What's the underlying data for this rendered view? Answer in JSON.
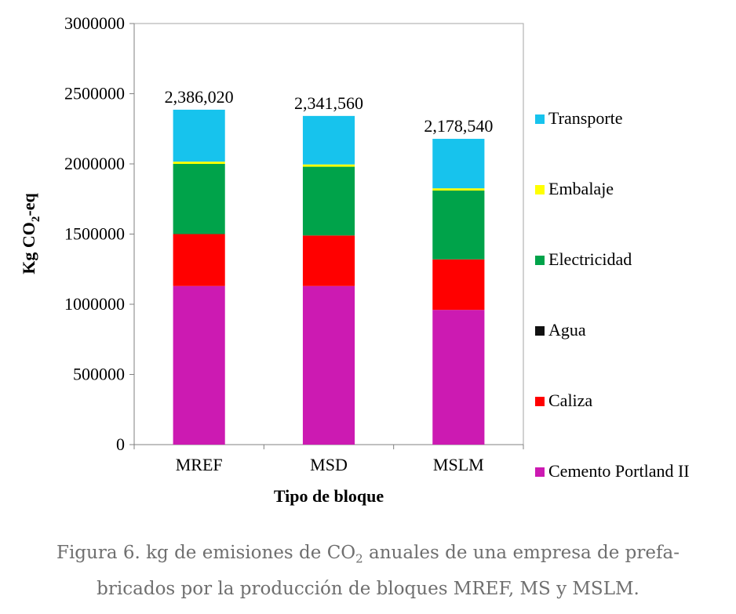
{
  "chart_data": {
    "type": "bar",
    "stacked": true,
    "categories": [
      "MREF",
      "MSD",
      "MSLM"
    ],
    "series": [
      {
        "name": "Cemento Portland II",
        "color": "#cc1ab2",
        "values": [
          1130000,
          1130000,
          960000
        ]
      },
      {
        "name": "Caliza",
        "color": "#ff0000",
        "values": [
          370000,
          360000,
          360000
        ]
      },
      {
        "name": "Agua",
        "color": "#111111",
        "values": [
          0,
          0,
          0
        ]
      },
      {
        "name": "Electricidad",
        "color": "#00a34a",
        "values": [
          500000,
          490000,
          490000
        ]
      },
      {
        "name": "Embalaje",
        "color": "#ffff00",
        "values": [
          16000,
          16000,
          16000
        ]
      },
      {
        "name": "Transporte",
        "color": "#17c3ed",
        "values": [
          370020,
          345560,
          352540
        ]
      }
    ],
    "totals": [
      "2,386,020",
      "2,341,560",
      "2,178,540"
    ],
    "xlabel": "Tipo de bloque",
    "ylabel_main": "Kg CO",
    "ylabel_sub": "2",
    "ylabel_tail": "-eq",
    "ylim": [
      0,
      3000000
    ],
    "yticks": [
      0,
      500000,
      1000000,
      1500000,
      2000000,
      2500000,
      3000000
    ],
    "legend_position": "right",
    "grid": false
  },
  "caption": {
    "line1_a": "Figura 6. kg de emisiones de CO",
    "line1_sub": "2",
    "line1_b": " anuales de una empresa de prefa-",
    "line2": "bricados por la producción de bloques MREF, MS y MSLM."
  }
}
